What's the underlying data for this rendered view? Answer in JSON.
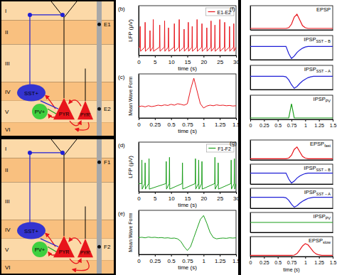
{
  "diagram": {
    "layers": [
      "I",
      "II",
      "III",
      "IV",
      "V",
      "VI"
    ],
    "panels": [
      {
        "cells": [
          "SST+",
          "PV+",
          "PYR",
          "PYR'"
        ],
        "electrodes": [
          "E1",
          "E2"
        ]
      },
      {
        "cells": [
          "SST+",
          "PV+",
          "PYR",
          "PYR'"
        ],
        "electrodes": [
          "F1",
          "F2"
        ]
      }
    ]
  },
  "chart_data": [
    {
      "type": "line",
      "annotations": [
        "(b)"
      ],
      "xlabel": "time (s)",
      "ylabel": "LFP (μV)",
      "tick_labels": "x",
      "legend": "upper right",
      "x": [
        0,
        0.42,
        0.5,
        0.58,
        1.92,
        2,
        2.08,
        3.42,
        3.5,
        3.58,
        4.42,
        4.5,
        4.58,
        6.42,
        6.5,
        6.58,
        7.92,
        8,
        8.08,
        9.12,
        9.2,
        9.28,
        10.92,
        11,
        11.08,
        12.42,
        12.5,
        12.58,
        13.92,
        14,
        14.08,
        15.22,
        15.3,
        15.38,
        16.42,
        16.5,
        16.58,
        17.92,
        18,
        18.08,
        19.42,
        19.5,
        19.58,
        20.92,
        21,
        21.08,
        22.22,
        22.3,
        22.38,
        23.42,
        23.5,
        23.58,
        24.92,
        25,
        25.08,
        26.42,
        26.5,
        26.58,
        27.92,
        28,
        28.08,
        29.22,
        29.3,
        29.38,
        30
      ],
      "xlim": [
        0,
        30
      ],
      "xticks": [
        0,
        5,
        10,
        15,
        20,
        25,
        30
      ],
      "ylim": [
        -60,
        300
      ],
      "series": [
        {
          "name": "E1-E2",
          "color": "#e8141b",
          "values": [
            0,
            0,
            150,
            -30,
            0,
            180,
            -30,
            0,
            120,
            -30,
            0,
            200,
            -30,
            0,
            160,
            -30,
            0,
            190,
            -30,
            0,
            140,
            -30,
            0,
            170,
            -30,
            0,
            200,
            -30,
            0,
            130,
            -30,
            0,
            180,
            -30,
            0,
            150,
            -30,
            0,
            200,
            -30,
            0,
            170,
            -30,
            0,
            140,
            -30,
            0,
            190,
            -30,
            0,
            160,
            -30,
            0,
            200,
            -30,
            0,
            180,
            -30,
            0,
            150,
            -30,
            0,
            170,
            -30,
            0
          ]
        }
      ]
    },
    {
      "type": "line",
      "annotations": [
        "(c)"
      ],
      "xlabel": "time (s)",
      "ylabel": "Mean Wave Form",
      "tick_labels": "x",
      "x": [
        0,
        0.05,
        0.1,
        0.15,
        0.2,
        0.25,
        0.3,
        0.35,
        0.4,
        0.45,
        0.5,
        0.55,
        0.6,
        0.65,
        0.7,
        0.75,
        0.8,
        0.85,
        0.9,
        0.95,
        1,
        1.05,
        1.1,
        1.15,
        1.2,
        1.25,
        1.3,
        1.35,
        1.4,
        1.45,
        1.5
      ],
      "xlim": [
        0,
        1.5
      ],
      "xticks": [
        0,
        0.25,
        0.5,
        0.75,
        1,
        1.25,
        1.5
      ],
      "ylim": [
        -0.4,
        1.15
      ],
      "color": "#e8141b",
      "values": [
        0,
        0.02,
        -0.01,
        0.03,
        0,
        0.02,
        0.05,
        0.03,
        0.06,
        0.04,
        0.08,
        0.05,
        0.1,
        0.08,
        0.05,
        0.1,
        0.6,
        1,
        0.55,
        0.1,
        -0.05,
        0.02,
        0.05,
        0.03,
        0.06,
        0.04,
        0.05,
        0.03,
        0.04,
        0.02,
        0.03
      ]
    },
    {
      "type": "line",
      "annotations": [
        "(d)"
      ],
      "xlabel": "time (s)",
      "ylabel": "LFP (μV)",
      "tick_labels": "x",
      "legend": "upper right",
      "x": [
        0,
        0.92,
        1,
        1.08,
        1.92,
        2,
        2.08,
        3.12,
        3.2,
        3.28,
        8.42,
        8.5,
        8.58,
        9.42,
        9.5,
        9.58,
        13.42,
        13.5,
        13.58,
        17.42,
        17.5,
        17.58,
        18.42,
        18.5,
        18.58,
        19.42,
        19.5,
        19.58,
        23.42,
        23.5,
        23.58,
        24.42,
        24.5,
        24.58,
        28.42,
        28.5,
        28.58,
        29.42,
        29.5,
        29.58,
        30
      ],
      "xlim": [
        0,
        30
      ],
      "xticks": [
        0,
        5,
        10,
        15,
        20,
        25,
        30
      ],
      "ylim": [
        -60,
        300
      ],
      "series": [
        {
          "name": "F1-F2",
          "color": "#1a9e1a",
          "values": [
            0,
            0,
            170,
            -40,
            0,
            150,
            -40,
            0,
            180,
            -40,
            0,
            160,
            -40,
            0,
            190,
            -40,
            0,
            150,
            -40,
            0,
            180,
            -40,
            0,
            170,
            -40,
            0,
            160,
            -40,
            0,
            190,
            -40,
            0,
            150,
            -40,
            0,
            170,
            -40,
            0,
            180,
            -40,
            0
          ]
        }
      ]
    },
    {
      "type": "line",
      "annotations": [
        "(e)"
      ],
      "xlabel": "time (s)",
      "ylabel": "Mean Wave Form",
      "tick_labels": "x",
      "x": [
        0,
        0.05,
        0.1,
        0.15,
        0.2,
        0.25,
        0.3,
        0.35,
        0.4,
        0.45,
        0.5,
        0.55,
        0.6,
        0.65,
        0.7,
        0.75,
        0.8,
        0.85,
        0.9,
        0.95,
        1,
        1.05,
        1.1,
        1.15,
        1.2,
        1.25,
        1.3,
        1.35,
        1.4,
        1.45,
        1.5
      ],
      "xlim": [
        0,
        1.5
      ],
      "xticks": [
        0,
        0.25,
        0.5,
        0.75,
        1,
        1.25,
        1.5
      ],
      "ylim": [
        -0.6,
        1.1
      ],
      "color": "#1a9e1a",
      "values": [
        0.05,
        0.06,
        0.04,
        0.07,
        0.05,
        0.06,
        0.04,
        0.05,
        0.03,
        0.04,
        0.02,
        0.03,
        0,
        -0.1,
        -0.3,
        -0.45,
        -0.3,
        0.05,
        0.4,
        0.75,
        0.9,
        0.6,
        0.25,
        0.05,
        0,
        0.02,
        0.03,
        0.02,
        0.04,
        0.03,
        0.04
      ]
    },
    {
      "type": "line",
      "annotations": [
        "(f)"
      ],
      "tick_labels": false,
      "legend": "upper right",
      "x": [
        0,
        0.05,
        0.1,
        0.15,
        0.2,
        0.25,
        0.3,
        0.35,
        0.4,
        0.45,
        0.5,
        0.55,
        0.6,
        0.65,
        0.7,
        0.75,
        0.8,
        0.85,
        0.9,
        0.95,
        1,
        1.05,
        1.1,
        1.15,
        1.2,
        1.25,
        1.3,
        1.35,
        1.4,
        1.45,
        1.5
      ],
      "xlim": [
        0,
        1.5
      ],
      "ylim": [
        -0.1,
        1.6
      ],
      "series": [
        {
          "name": "EPSP",
          "color": "#e8141b",
          "values": [
            0,
            0,
            0,
            0,
            0,
            0,
            0,
            0,
            0,
            0,
            0,
            0,
            0,
            0,
            0.05,
            0.3,
            0.8,
            1,
            0.6,
            0.2,
            0.05,
            0,
            0,
            0,
            0,
            0,
            0,
            0,
            0,
            0,
            0
          ]
        }
      ]
    },
    {
      "type": "line",
      "tick_labels": false,
      "legend": "upper right",
      "x": [
        0,
        0.05,
        0.1,
        0.15,
        0.2,
        0.25,
        0.3,
        0.35,
        0.4,
        0.45,
        0.5,
        0.55,
        0.6,
        0.65,
        0.7,
        0.75,
        0.8,
        0.85,
        0.9,
        0.95,
        1,
        1.05,
        1.1,
        1.15,
        1.2,
        1.25,
        1.3,
        1.35,
        1.4,
        1.45,
        1.5
      ],
      "xlim": [
        0,
        1.5
      ],
      "ylim": [
        -1.1,
        0.9
      ],
      "series": [
        {
          "name": "IPSP",
          "name_subscript": "SST − B",
          "color": "#1f1fd6",
          "values": [
            0,
            0,
            0,
            0,
            0,
            0,
            0,
            0,
            0,
            0,
            0,
            0,
            0,
            0,
            -0.6,
            -1,
            -0.8,
            -0.5,
            -0.3,
            -0.15,
            -0.05,
            0,
            0,
            0,
            0,
            0,
            0,
            0,
            0,
            0,
            0
          ]
        }
      ]
    },
    {
      "type": "line",
      "tick_labels": false,
      "legend": "upper right",
      "x": [
        0,
        0.05,
        0.1,
        0.15,
        0.2,
        0.25,
        0.3,
        0.35,
        0.4,
        0.45,
        0.5,
        0.55,
        0.6,
        0.65,
        0.7,
        0.75,
        0.8,
        0.85,
        0.9,
        0.95,
        1,
        1.05,
        1.1,
        1.15,
        1.2,
        1.25,
        1.3,
        1.35,
        1.4,
        1.45,
        1.5
      ],
      "xlim": [
        0,
        1.5
      ],
      "ylim": [
        -1.1,
        0.9
      ],
      "series": [
        {
          "name": "IPSP",
          "name_subscript": "SST − A",
          "color": "#1f1fd6",
          "values": [
            0,
            0,
            0,
            0,
            0,
            0,
            0,
            0,
            0,
            0,
            0,
            0,
            0,
            -0.05,
            -0.3,
            -0.7,
            -1,
            -0.85,
            -0.6,
            -0.4,
            -0.25,
            -0.12,
            -0.05,
            0,
            0,
            0,
            0,
            0,
            0,
            0,
            0
          ]
        }
      ]
    },
    {
      "type": "line",
      "tick_labels": "x",
      "legend": "upper right",
      "x": [
        0,
        0.05,
        0.1,
        0.15,
        0.2,
        0.25,
        0.3,
        0.35,
        0.4,
        0.45,
        0.5,
        0.55,
        0.6,
        0.65,
        0.7,
        0.75,
        0.8,
        0.85,
        0.9,
        0.95,
        1,
        1.05,
        1.1,
        1.15,
        1.2,
        1.25,
        1.3,
        1.35,
        1.4,
        1.45,
        1.5
      ],
      "xlim": [
        0,
        1.5
      ],
      "xticks": [
        0,
        0.25,
        0.5,
        0.75,
        1,
        1.25,
        1.5
      ],
      "ylim": [
        -0.1,
        1.6
      ],
      "series": [
        {
          "name": "IPSP",
          "name_subscript": "PV",
          "color": "#1a9e1a",
          "values": [
            0,
            0,
            0,
            0,
            0,
            0,
            0,
            0,
            0,
            0,
            0,
            0,
            0,
            0,
            0,
            1,
            0,
            0,
            0,
            0,
            0,
            0,
            0,
            0,
            0,
            0,
            0,
            0,
            0,
            0,
            0
          ]
        }
      ]
    },
    {
      "type": "line",
      "annotations": [
        "(g)"
      ],
      "tick_labels": false,
      "legend": "upper right",
      "x": [
        0,
        0.05,
        0.1,
        0.15,
        0.2,
        0.25,
        0.3,
        0.35,
        0.4,
        0.45,
        0.5,
        0.55,
        0.6,
        0.65,
        0.7,
        0.75,
        0.8,
        0.85,
        0.9,
        0.95,
        1,
        1.05,
        1.1,
        1.15,
        1.2,
        1.25,
        1.3,
        1.35,
        1.4,
        1.45,
        1.5
      ],
      "xlim": [
        0,
        1.5
      ],
      "ylim": [
        -0.1,
        1.6
      ],
      "series": [
        {
          "name": "EPSP",
          "name_subscript": "fast",
          "color": "#e8141b",
          "values": [
            0,
            0,
            0,
            0,
            0,
            0,
            0,
            0,
            0,
            0,
            0,
            0,
            0,
            0,
            0.05,
            0.3,
            0.8,
            1,
            0.6,
            0.2,
            0.05,
            0,
            0,
            0,
            0,
            0,
            0,
            0,
            0,
            0,
            0
          ]
        }
      ]
    },
    {
      "type": "line",
      "tick_labels": false,
      "legend": "upper right",
      "x": [
        0,
        0.05,
        0.1,
        0.15,
        0.2,
        0.25,
        0.3,
        0.35,
        0.4,
        0.45,
        0.5,
        0.55,
        0.6,
        0.65,
        0.7,
        0.75,
        0.8,
        0.85,
        0.9,
        0.95,
        1,
        1.05,
        1.1,
        1.15,
        1.2,
        1.25,
        1.3,
        1.35,
        1.4,
        1.45,
        1.5
      ],
      "xlim": [
        0,
        1.5
      ],
      "ylim": [
        -1.1,
        0.9
      ],
      "series": [
        {
          "name": "IPSP",
          "name_subscript": "SST − B",
          "color": "#1f1fd6",
          "values": [
            0,
            0,
            0,
            0,
            0,
            0,
            0,
            0,
            0,
            0,
            0,
            0,
            0,
            0,
            -0.6,
            -1,
            -0.8,
            -0.5,
            -0.3,
            -0.15,
            -0.05,
            0,
            0,
            0,
            0,
            0,
            0,
            0,
            0,
            0,
            0
          ]
        }
      ]
    },
    {
      "type": "line",
      "tick_labels": false,
      "legend": "upper right",
      "x": [
        0,
        0.05,
        0.1,
        0.15,
        0.2,
        0.25,
        0.3,
        0.35,
        0.4,
        0.45,
        0.5,
        0.55,
        0.6,
        0.65,
        0.7,
        0.75,
        0.8,
        0.85,
        0.9,
        0.95,
        1,
        1.05,
        1.1,
        1.15,
        1.2,
        1.25,
        1.3,
        1.35,
        1.4,
        1.45,
        1.5
      ],
      "xlim": [
        0,
        1.5
      ],
      "ylim": [
        -1.1,
        0.9
      ],
      "series": [
        {
          "name": "IPSP",
          "name_subscript": "SST − A",
          "color": "#1f1fd6",
          "values": [
            0,
            0,
            0,
            0,
            0,
            0,
            0,
            0,
            0,
            0,
            0,
            0,
            0,
            -0.05,
            -0.3,
            -0.7,
            -1,
            -0.85,
            -0.6,
            -0.4,
            -0.25,
            -0.12,
            -0.05,
            0,
            0,
            0,
            0,
            0,
            0,
            0,
            0
          ]
        }
      ]
    },
    {
      "type": "line",
      "tick_labels": false,
      "legend": "upper right",
      "x": [
        0,
        0.05,
        0.1,
        0.15,
        0.2,
        0.25,
        0.3,
        0.35,
        0.4,
        0.45,
        0.5,
        0.55,
        0.6,
        0.65,
        0.7,
        0.75,
        0.8,
        0.85,
        0.9,
        0.95,
        1,
        1.05,
        1.1,
        1.15,
        1.2,
        1.25,
        1.3,
        1.35,
        1.4,
        1.45,
        1.5
      ],
      "xlim": [
        0,
        1.5
      ],
      "ylim": [
        -1,
        1
      ],
      "series": [
        {
          "name": "IPSP",
          "name_subscript": "PV",
          "color": "#1a9e1a",
          "values": [
            0,
            0,
            0,
            0,
            0,
            0,
            0,
            0,
            0,
            0,
            0,
            0,
            0,
            0,
            0,
            0,
            0,
            0,
            0,
            0,
            0,
            0,
            0,
            0,
            0,
            0,
            0,
            0,
            0,
            0,
            0
          ]
        }
      ]
    },
    {
      "type": "line",
      "xlabel": "time (s)",
      "tick_labels": "x",
      "legend": "upper right",
      "x": [
        0,
        0.05,
        0.1,
        0.15,
        0.2,
        0.25,
        0.3,
        0.35,
        0.4,
        0.45,
        0.5,
        0.55,
        0.6,
        0.65,
        0.7,
        0.75,
        0.8,
        0.85,
        0.9,
        0.95,
        1,
        1.05,
        1.1,
        1.15,
        1.2,
        1.25,
        1.3,
        1.35,
        1.4,
        1.45,
        1.5
      ],
      "xlim": [
        0,
        1.5
      ],
      "xticks": [
        0,
        0.25,
        0.5,
        0.75,
        1,
        1.25,
        1.5
      ],
      "ylim": [
        -0.1,
        1.6
      ],
      "series": [
        {
          "name": "EPSP",
          "name_subscript": "slow",
          "color": "#e8141b",
          "values": [
            0,
            0,
            0,
            0,
            0,
            0,
            0,
            0,
            0,
            0,
            0,
            0,
            0,
            0,
            0,
            0,
            0.02,
            0.15,
            0.45,
            0.8,
            1,
            0.9,
            0.6,
            0.3,
            0.12,
            0.04,
            0,
            0,
            0,
            0,
            0
          ]
        }
      ]
    }
  ]
}
